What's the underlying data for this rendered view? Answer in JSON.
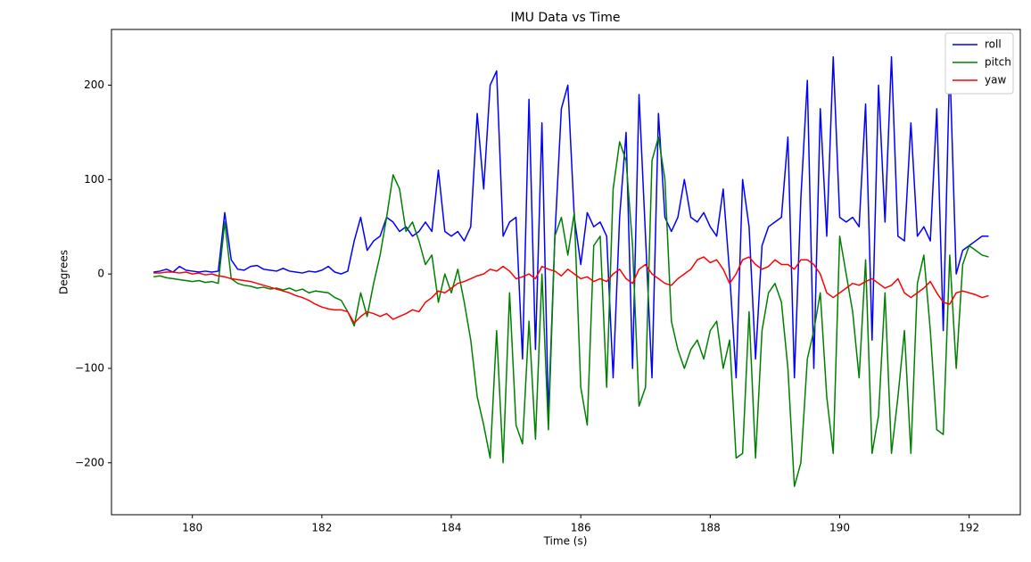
{
  "chart_data": {
    "type": "line",
    "title": "IMU Data vs Time",
    "x_label": "Time (s)",
    "y_label": "Degrees",
    "x": [
      179.4,
      179.5,
      179.6,
      179.7,
      179.8,
      179.9,
      180.0,
      180.1,
      180.2,
      180.3,
      180.4,
      180.5,
      180.6,
      180.7,
      180.8,
      180.9,
      181.0,
      181.1,
      181.2,
      181.3,
      181.4,
      181.5,
      181.6,
      181.7,
      181.8,
      181.9,
      182.0,
      182.1,
      182.2,
      182.3,
      182.4,
      182.5,
      182.6,
      182.7,
      182.8,
      182.9,
      183.0,
      183.1,
      183.2,
      183.3,
      183.4,
      183.5,
      183.6,
      183.7,
      183.8,
      183.9,
      184.0,
      184.1,
      184.2,
      184.3,
      184.4,
      184.5,
      184.6,
      184.7,
      184.8,
      184.9,
      185.0,
      185.1,
      185.2,
      185.3,
      185.4,
      185.5,
      185.6,
      185.7,
      185.8,
      185.9,
      186.0,
      186.1,
      186.2,
      186.3,
      186.4,
      186.5,
      186.6,
      186.7,
      186.8,
      186.9,
      187.0,
      187.1,
      187.2,
      187.3,
      187.4,
      187.5,
      187.6,
      187.7,
      187.8,
      187.9,
      188.0,
      188.1,
      188.2,
      188.3,
      188.4,
      188.5,
      188.6,
      188.7,
      188.8,
      188.9,
      189.0,
      189.1,
      189.2,
      189.3,
      189.4,
      189.5,
      189.6,
      189.7,
      189.8,
      189.9,
      190.0,
      190.1,
      190.2,
      190.3,
      190.4,
      190.5,
      190.6,
      190.7,
      190.8,
      190.9,
      191.0,
      191.1,
      191.2,
      191.3,
      191.4,
      191.5,
      191.6,
      191.7,
      191.8,
      191.9,
      192.0,
      192.1,
      192.2,
      192.3
    ],
    "series": [
      {
        "name": "roll",
        "color": "#0000ff",
        "values": [
          2,
          3,
          5,
          2,
          8,
          4,
          3,
          2,
          3,
          2,
          3,
          65,
          15,
          5,
          4,
          8,
          9,
          5,
          4,
          3,
          6,
          3,
          2,
          1,
          3,
          2,
          4,
          8,
          2,
          0,
          3,
          35,
          60,
          25,
          35,
          40,
          60,
          55,
          45,
          50,
          40,
          45,
          55,
          45,
          110,
          45,
          40,
          45,
          35,
          50,
          170,
          90,
          200,
          215,
          40,
          55,
          60,
          -90,
          185,
          -80,
          160,
          -150,
          40,
          175,
          200,
          60,
          10,
          65,
          50,
          55,
          40,
          -110,
          60,
          150,
          -100,
          190,
          40,
          -110,
          170,
          60,
          45,
          60,
          100,
          60,
          55,
          65,
          50,
          40,
          90,
          0,
          -110,
          100,
          50,
          -90,
          30,
          50,
          55,
          60,
          145,
          -110,
          80,
          205,
          -100,
          175,
          40,
          230,
          60,
          55,
          60,
          50,
          180,
          -70,
          200,
          55,
          230,
          40,
          35,
          160,
          40,
          50,
          35,
          175,
          -60,
          225,
          0,
          25,
          30,
          35,
          40,
          40
        ]
      },
      {
        "name": "pitch",
        "color": "#008000",
        "values": [
          -3,
          -2,
          -4,
          -5,
          -6,
          -7,
          -8,
          -7,
          -9,
          -8,
          -10,
          55,
          -5,
          -10,
          -12,
          -13,
          -15,
          -14,
          -16,
          -15,
          -17,
          -15,
          -18,
          -16,
          -20,
          -18,
          -19,
          -20,
          -25,
          -28,
          -40,
          -55,
          -20,
          -45,
          -10,
          20,
          60,
          105,
          90,
          45,
          55,
          35,
          10,
          20,
          -30,
          0,
          -20,
          5,
          -30,
          -70,
          -130,
          -160,
          -195,
          -60,
          -200,
          -20,
          -160,
          -180,
          -50,
          -175,
          0,
          -165,
          40,
          60,
          20,
          65,
          -120,
          -160,
          30,
          40,
          -120,
          90,
          140,
          120,
          30,
          -140,
          -120,
          120,
          145,
          100,
          -50,
          -80,
          -100,
          -80,
          -70,
          -90,
          -60,
          -50,
          -100,
          -70,
          -195,
          -190,
          -40,
          -195,
          -60,
          -20,
          -10,
          -30,
          -100,
          -225,
          -200,
          -90,
          -60,
          -20,
          -130,
          -190,
          40,
          0,
          -40,
          -110,
          15,
          -190,
          -150,
          -20,
          -190,
          -130,
          -60,
          -190,
          -10,
          20,
          -60,
          -165,
          -170,
          20,
          -100,
          10,
          30,
          25,
          20,
          18
        ]
      },
      {
        "name": "yaw",
        "color": "#ff0000",
        "values": [
          1,
          1,
          2,
          2,
          1,
          2,
          0,
          1,
          -1,
          0,
          -2,
          -3,
          -5,
          -6,
          -7,
          -8,
          -10,
          -12,
          -14,
          -16,
          -18,
          -20,
          -23,
          -25,
          -28,
          -32,
          -35,
          -37,
          -38,
          -38,
          -40,
          -52,
          -45,
          -40,
          -42,
          -45,
          -42,
          -48,
          -45,
          -42,
          -38,
          -40,
          -30,
          -25,
          -18,
          -20,
          -15,
          -10,
          -8,
          -5,
          -2,
          0,
          5,
          3,
          8,
          3,
          -5,
          -3,
          0,
          -5,
          8,
          5,
          3,
          -2,
          5,
          0,
          -5,
          -3,
          -8,
          -5,
          -8,
          0,
          5,
          -5,
          -10,
          5,
          10,
          0,
          -5,
          -10,
          -12,
          -5,
          0,
          5,
          15,
          18,
          12,
          15,
          5,
          -10,
          0,
          15,
          18,
          10,
          5,
          8,
          15,
          10,
          10,
          5,
          15,
          15,
          10,
          0,
          -20,
          -25,
          -20,
          -15,
          -10,
          -12,
          -8,
          -5,
          -10,
          -15,
          -12,
          -5,
          -20,
          -25,
          -20,
          -15,
          -8,
          -20,
          -30,
          -32,
          -20,
          -18,
          -20,
          -22,
          -25,
          -23
        ]
      }
    ],
    "xlim": [
      178.75,
      192.79
    ],
    "ylim": [
      -255,
      259
    ],
    "xticks": [
      180,
      182,
      184,
      186,
      188,
      190,
      192
    ],
    "yticks": [
      {
        "value": -200,
        "label": "−200"
      },
      {
        "value": -100,
        "label": "−100"
      },
      0,
      100,
      200
    ],
    "grid": false,
    "legend": "upper right"
  }
}
